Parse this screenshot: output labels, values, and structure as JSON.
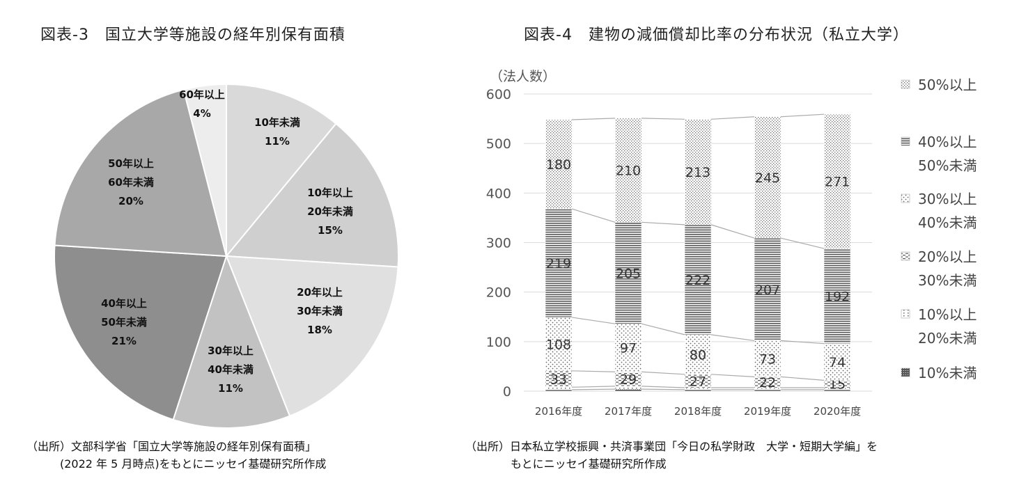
{
  "chart_data": [
    {
      "type": "pie",
      "title": "図表-3　国立大学等施設の経年別保有面積",
      "slices": [
        {
          "label": "10年未満",
          "value": 11,
          "pct": "11%",
          "color": "#d9d9d9"
        },
        {
          "label": "10年以上 20年未満",
          "value": 15,
          "pct": "15%",
          "color": "#cfcfcf"
        },
        {
          "label": "20年以上 30年未満",
          "value": 18,
          "pct": "18%",
          "color": "#e0e0e0"
        },
        {
          "label": "30年以上 40年未満",
          "value": 11,
          "pct": "11%",
          "color": "#c2c2c2"
        },
        {
          "label": "40年以上 50年未満",
          "value": 21,
          "pct": "21%",
          "color": "#8e8e8e"
        },
        {
          "label": "50年以上 60年未満",
          "value": 20,
          "pct": "20%",
          "color": "#a8a8a8"
        },
        {
          "label": "60年以上",
          "value": 4,
          "pct": "4%",
          "color": "#ededed"
        }
      ],
      "source": [
        "（出所）文部科学省「国立大学等施設の経年別保有面積」",
        "(2022 年 5 月時点)をもとにニッセイ基礎研究所作成"
      ]
    },
    {
      "type": "bar",
      "stacked": true,
      "title": "図表-4　建物の減価償却比率の分布状況（私立大学）",
      "ylabel": "（法人数）",
      "ylim": [
        0,
        600
      ],
      "yticks": [
        0,
        100,
        200,
        300,
        400,
        500,
        600
      ],
      "categories": [
        "2016年度",
        "2017年度",
        "2018年度",
        "2019年度",
        "2020年度"
      ],
      "series": [
        {
          "name": "10%未満",
          "legend": [
            "10%未満"
          ],
          "pattern": "p-dense",
          "values": [
            3,
            4,
            3,
            3,
            3
          ],
          "labels": [
            "",
            "",
            "",
            "",
            ""
          ]
        },
        {
          "name": "10%以上 20%未満",
          "legend": [
            "10%以上",
            "20%未満"
          ],
          "pattern": "p-sparse",
          "values": [
            5,
            6,
            4,
            4,
            4
          ],
          "labels": [
            "",
            "",
            "",
            "",
            ""
          ]
        },
        {
          "name": "20%以上 30%未満",
          "legend": [
            "20%以上",
            "30%未満"
          ],
          "pattern": "p-dash",
          "values": [
            33,
            29,
            27,
            22,
            15
          ],
          "labels": [
            "33",
            "29",
            "27",
            "22",
            "15"
          ]
        },
        {
          "name": "30%以上 40%未満",
          "legend": [
            "30%以上",
            "40%未満"
          ],
          "pattern": "p-dots",
          "values": [
            108,
            97,
            80,
            73,
            74
          ],
          "labels": [
            "108",
            "97",
            "80",
            "73",
            "74"
          ]
        },
        {
          "name": "40%以上 50%未満",
          "legend": [
            "40%以上",
            "50%未満"
          ],
          "pattern": "p-hlines",
          "values": [
            219,
            205,
            222,
            207,
            192
          ],
          "labels": [
            "219",
            "205",
            "222",
            "207",
            "192"
          ]
        },
        {
          "name": "50%以上",
          "legend": [
            "50%以上"
          ],
          "pattern": "p-fine",
          "values": [
            180,
            210,
            213,
            245,
            271
          ],
          "labels": [
            "180",
            "210",
            "213",
            "245",
            "271"
          ]
        }
      ],
      "source": [
        "（出所）日本私立学校振興・共済事業団「今日の私学財政　大学・短期大学編」を",
        "もとにニッセイ基礎研究所作成"
      ]
    }
  ]
}
